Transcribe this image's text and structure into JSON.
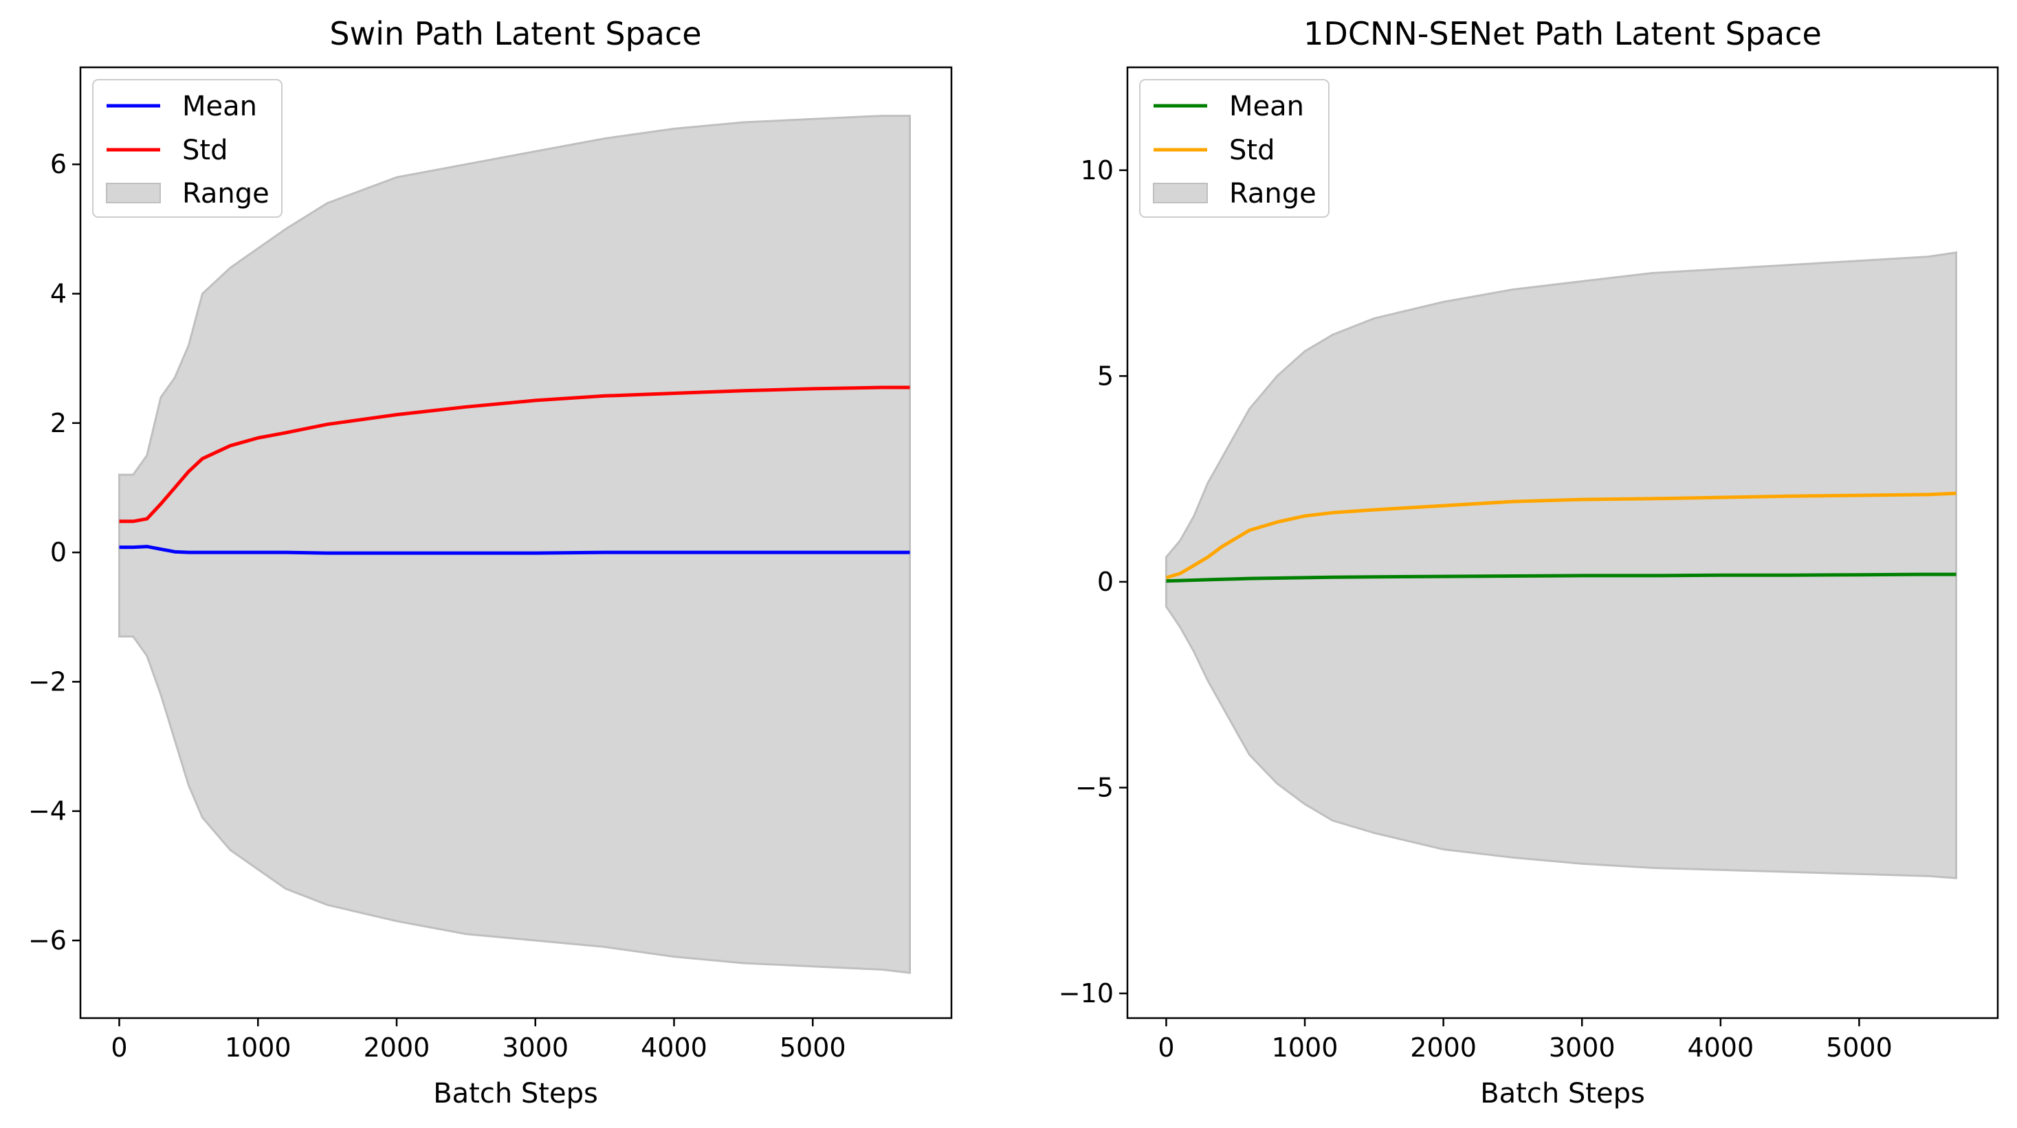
{
  "chart_data": [
    {
      "type": "line",
      "title": "Swin Path Latent Space",
      "xlabel": "Batch Steps",
      "ylabel": "",
      "xlim": [
        -280,
        6000
      ],
      "ylim": [
        -7.2,
        7.5
      ],
      "xticks": [
        0,
        1000,
        2000,
        3000,
        4000,
        5000
      ],
      "xtick_labels": [
        "0",
        "1000",
        "2000",
        "3000",
        "4000",
        "5000"
      ],
      "yticks": [
        -6,
        -4,
        -2,
        0,
        2,
        4,
        6
      ],
      "ytick_labels": [
        "−6",
        "−4",
        "−2",
        "0",
        "2",
        "4",
        "6"
      ],
      "grid": false,
      "legend_position": "top-left",
      "legend": [
        "Mean",
        "Std",
        "Range"
      ],
      "colors": {
        "mean": "#0000ff",
        "std": "#ff0000",
        "range": "#d6d6d6",
        "range_edge": "#bfbfbf"
      },
      "x": [
        0,
        100,
        200,
        300,
        400,
        500,
        600,
        800,
        1000,
        1200,
        1500,
        2000,
        2500,
        3000,
        3500,
        4000,
        4500,
        5000,
        5500,
        5700
      ],
      "series": [
        {
          "name": "Mean",
          "values": [
            0.08,
            0.08,
            0.09,
            0.05,
            0.01,
            0.0,
            0.0,
            0.0,
            0.0,
            0.0,
            -0.01,
            -0.01,
            -0.01,
            -0.01,
            0.0,
            0.0,
            0.0,
            0.0,
            0.0,
            0.0
          ]
        },
        {
          "name": "Std",
          "values": [
            0.48,
            0.48,
            0.52,
            0.75,
            1.0,
            1.25,
            1.45,
            1.65,
            1.77,
            1.85,
            1.98,
            2.13,
            2.25,
            2.35,
            2.42,
            2.46,
            2.5,
            2.53,
            2.55,
            2.55
          ]
        },
        {
          "name": "Range max",
          "values": [
            1.2,
            1.2,
            1.5,
            2.4,
            2.7,
            3.2,
            4.0,
            4.4,
            4.7,
            5.0,
            5.4,
            5.8,
            6.0,
            6.2,
            6.4,
            6.55,
            6.65,
            6.7,
            6.75,
            6.75
          ]
        },
        {
          "name": "Range min",
          "values": [
            -1.3,
            -1.3,
            -1.6,
            -2.2,
            -2.9,
            -3.6,
            -4.1,
            -4.6,
            -4.9,
            -5.2,
            -5.45,
            -5.7,
            -5.9,
            -6.0,
            -6.1,
            -6.25,
            -6.35,
            -6.4,
            -6.45,
            -6.5
          ]
        }
      ]
    },
    {
      "type": "line",
      "title": "1DCNN-SENet Path Latent Space",
      "xlabel": "Batch Steps",
      "ylabel": "",
      "xlim": [
        -280,
        6000
      ],
      "ylim": [
        -10.6,
        12.5
      ],
      "xticks": [
        0,
        1000,
        2000,
        3000,
        4000,
        5000
      ],
      "xtick_labels": [
        "0",
        "1000",
        "2000",
        "3000",
        "4000",
        "5000"
      ],
      "yticks": [
        -10,
        -5,
        0,
        5,
        10
      ],
      "ytick_labels": [
        "−10",
        "−5",
        "0",
        "5",
        "10"
      ],
      "grid": false,
      "legend_position": "top-left",
      "legend": [
        "Mean",
        "Std",
        "Range"
      ],
      "colors": {
        "mean": "#008000",
        "std": "#ffa500",
        "range": "#d6d6d6",
        "range_edge": "#bfbfbf"
      },
      "x": [
        0,
        100,
        200,
        300,
        400,
        500,
        600,
        800,
        1000,
        1200,
        1500,
        2000,
        2500,
        3000,
        3500,
        4000,
        4500,
        5000,
        5500,
        5700
      ],
      "series": [
        {
          "name": "Mean",
          "values": [
            0.02,
            0.03,
            0.04,
            0.05,
            0.06,
            0.07,
            0.08,
            0.09,
            0.1,
            0.11,
            0.12,
            0.13,
            0.14,
            0.15,
            0.15,
            0.16,
            0.16,
            0.17,
            0.18,
            0.18
          ]
        },
        {
          "name": "Std",
          "values": [
            0.1,
            0.2,
            0.4,
            0.6,
            0.85,
            1.05,
            1.25,
            1.45,
            1.6,
            1.68,
            1.75,
            1.85,
            1.95,
            2.0,
            2.02,
            2.05,
            2.08,
            2.1,
            2.12,
            2.15
          ]
        },
        {
          "name": "Range max",
          "values": [
            0.6,
            1.0,
            1.6,
            2.4,
            3.0,
            3.6,
            4.2,
            5.0,
            5.6,
            6.0,
            6.4,
            6.8,
            7.1,
            7.3,
            7.5,
            7.6,
            7.7,
            7.8,
            7.9,
            8.0
          ]
        },
        {
          "name": "Range min",
          "values": [
            -0.6,
            -1.1,
            -1.7,
            -2.4,
            -3.0,
            -3.6,
            -4.2,
            -4.9,
            -5.4,
            -5.8,
            -6.1,
            -6.5,
            -6.7,
            -6.85,
            -6.95,
            -7.0,
            -7.05,
            -7.1,
            -7.15,
            -7.2
          ]
        }
      ]
    }
  ]
}
